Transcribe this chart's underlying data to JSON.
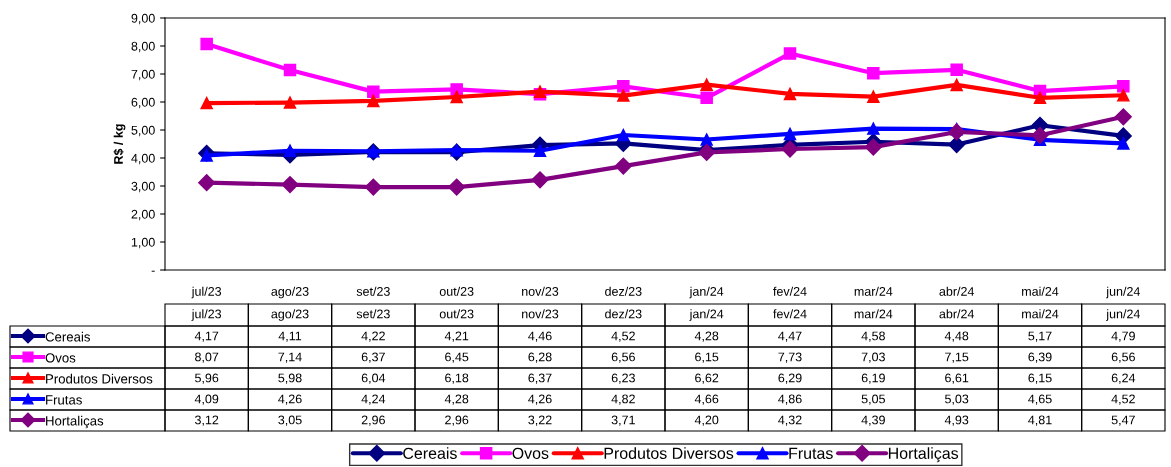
{
  "chart_data": {
    "type": "line",
    "ylabel": "R$ / kg",
    "categories": [
      "jul/23",
      "ago/23",
      "set/23",
      "out/23",
      "nov/23",
      "dez/23",
      "jan/24",
      "fev/24",
      "mar/24",
      "abr/24",
      "mai/24",
      "jun/24"
    ],
    "ylim": [
      0,
      9
    ],
    "yticks": [
      {
        "value": 0,
        "label": "-"
      },
      {
        "value": 1,
        "label": "1,00"
      },
      {
        "value": 2,
        "label": "2,00"
      },
      {
        "value": 3,
        "label": "3,00"
      },
      {
        "value": 4,
        "label": "4,00"
      },
      {
        "value": 5,
        "label": "5,00"
      },
      {
        "value": 6,
        "label": "6,00"
      },
      {
        "value": 7,
        "label": "7,00"
      },
      {
        "value": 8,
        "label": "8,00"
      },
      {
        "value": 9,
        "label": "9,00"
      }
    ],
    "grid": false,
    "legend": "bottom",
    "line_style": "solid",
    "series": [
      {
        "name": "Cereais",
        "color": "#000080",
        "marker": "diamond",
        "values": [
          4.17,
          4.11,
          4.22,
          4.21,
          4.46,
          4.52,
          4.28,
          4.47,
          4.58,
          4.48,
          5.17,
          4.79
        ],
        "value_labels": [
          "4,17",
          "4,11",
          "4,22",
          "4,21",
          "4,46",
          "4,52",
          "4,28",
          "4,47",
          "4,58",
          "4,48",
          "5,17",
          "4,79"
        ]
      },
      {
        "name": "Ovos",
        "color": "#ff00ff",
        "marker": "square",
        "values": [
          8.07,
          7.14,
          6.37,
          6.45,
          6.28,
          6.56,
          6.15,
          7.73,
          7.03,
          7.15,
          6.39,
          6.56
        ],
        "value_labels": [
          "8,07",
          "7,14",
          "6,37",
          "6,45",
          "6,28",
          "6,56",
          "6,15",
          "7,73",
          "7,03",
          "7,15",
          "6,39",
          "6,56"
        ]
      },
      {
        "name": "Produtos Diversos",
        "color": "#ff0000",
        "marker": "triangle",
        "values": [
          5.96,
          5.98,
          6.04,
          6.18,
          6.37,
          6.23,
          6.62,
          6.29,
          6.19,
          6.61,
          6.15,
          6.24
        ],
        "value_labels": [
          "5,96",
          "5,98",
          "6,04",
          "6,18",
          "6,37",
          "6,23",
          "6,62",
          "6,29",
          "6,19",
          "6,61",
          "6,15",
          "6,24"
        ]
      },
      {
        "name": "Frutas",
        "color": "#0000ff",
        "marker": "triangle",
        "values": [
          4.09,
          4.26,
          4.24,
          4.28,
          4.26,
          4.82,
          4.66,
          4.86,
          5.05,
          5.03,
          4.65,
          4.52
        ],
        "value_labels": [
          "4,09",
          "4,26",
          "4,24",
          "4,28",
          "4,26",
          "4,82",
          "4,66",
          "4,86",
          "5,05",
          "5,03",
          "4,65",
          "4,52"
        ]
      },
      {
        "name": "Hortaliças",
        "color": "#800080",
        "marker": "diamond",
        "values": [
          3.12,
          3.05,
          2.96,
          2.96,
          3.22,
          3.71,
          4.2,
          4.32,
          4.39,
          4.93,
          4.81,
          5.47
        ],
        "value_labels": [
          "3,12",
          "3,05",
          "2,96",
          "2,96",
          "3,22",
          "3,71",
          "4,20",
          "4,32",
          "4,39",
          "4,93",
          "4,81",
          "5,47"
        ]
      }
    ]
  }
}
